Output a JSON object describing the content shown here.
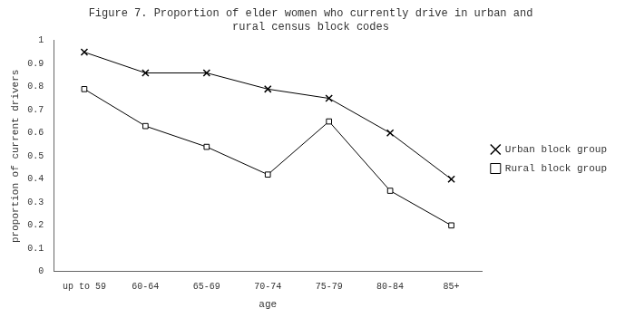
{
  "chart_data": {
    "type": "line",
    "title": [
      "Figure 7. Proportion of elder women who currently drive in urban and",
      "rural census block codes"
    ],
    "categories": [
      "up to 59",
      "60-64",
      "65-69",
      "70-74",
      "75-79",
      "80-84",
      "85+"
    ],
    "series": [
      {
        "name": "Urban block group",
        "color": "#000000",
        "marker": "x",
        "line_style": "solid",
        "values": [
          0.95,
          0.86,
          0.86,
          0.79,
          0.75,
          0.6,
          0.4
        ]
      },
      {
        "name": "Rural block group",
        "color": "#000000",
        "marker": "square",
        "line_style": "solid",
        "values": [
          0.79,
          0.63,
          0.54,
          0.42,
          0.65,
          0.35,
          0.2
        ]
      }
    ],
    "xlabel": "age",
    "ylabel": "proportion of current drivers",
    "ylim": [
      0,
      1
    ],
    "yticks": [
      0,
      0.1,
      0.2,
      0.3,
      0.4,
      0.5,
      0.6,
      0.7,
      0.8,
      0.9,
      1
    ],
    "grid": false,
    "legend": "right"
  }
}
